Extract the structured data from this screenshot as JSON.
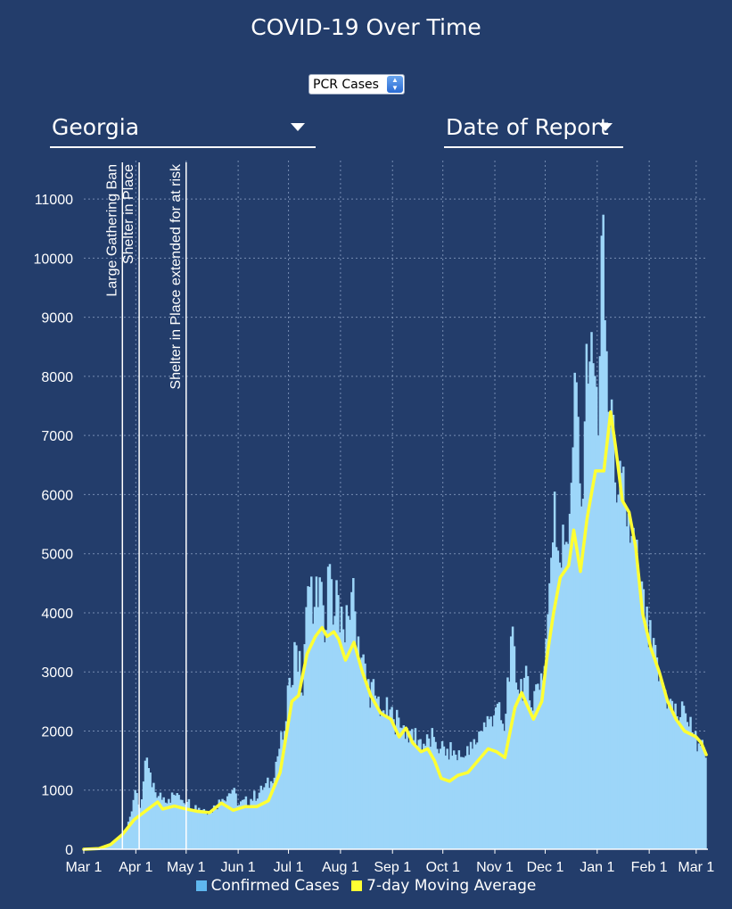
{
  "title": "COVID-19 Over Time",
  "metric_select": {
    "value": "PCR Cases"
  },
  "region_dropdown": {
    "value": "Georgia"
  },
  "date_dropdown": {
    "value": "Date of Report"
  },
  "colors": {
    "background": "#233d6b",
    "bars": "#9dd6f9",
    "bars_legend": "#5fb7ef",
    "moving_average": "#ffff33",
    "grid": "#8aa0c4",
    "event_lines": "#ffffff"
  },
  "legend": {
    "bars_label": "Confirmed Cases",
    "line_label": "7-day Moving Average"
  },
  "chart_data": {
    "type": "bar",
    "xlabel": "",
    "ylabel": "",
    "ylim": [
      0,
      11500
    ],
    "xlim": [
      "2020-03-01",
      "2021-03-08"
    ],
    "y_ticks": [
      0,
      1000,
      2000,
      3000,
      4000,
      5000,
      6000,
      7000,
      8000,
      9000,
      10000,
      11000
    ],
    "x_ticks": [
      {
        "date": "2020-03-01",
        "label": "Mar 1"
      },
      {
        "date": "2020-04-01",
        "label": "Apr 1"
      },
      {
        "date": "2020-05-01",
        "label": "May 1"
      },
      {
        "date": "2020-06-01",
        "label": "Jun 1"
      },
      {
        "date": "2020-07-01",
        "label": "Jul 1"
      },
      {
        "date": "2020-08-01",
        "label": "Aug 1"
      },
      {
        "date": "2020-09-01",
        "label": "Sep 1"
      },
      {
        "date": "2020-10-01",
        "label": "Oct 1"
      },
      {
        "date": "2020-11-01",
        "label": "Nov 1"
      },
      {
        "date": "2020-12-01",
        "label": "Dec 1"
      },
      {
        "date": "2021-01-01",
        "label": "Jan 1"
      },
      {
        "date": "2021-02-01",
        "label": "Feb 1"
      },
      {
        "date": "2021-03-01",
        "label": "Mar 1"
      }
    ],
    "grid": true,
    "legend_position": "bottom-center",
    "annotations": [
      {
        "date": "2020-03-24",
        "label": "Large Gathering Ban"
      },
      {
        "date": "2020-04-03",
        "label": "Shelter in Place"
      },
      {
        "date": "2020-05-01",
        "label": "Shelter in Place extended for at risk"
      }
    ],
    "series": [
      {
        "name": "Confirmed Cases",
        "type": "bar",
        "points": [
          [
            "2020-03-01",
            0
          ],
          [
            "2020-03-10",
            10
          ],
          [
            "2020-03-15",
            60
          ],
          [
            "2020-03-20",
            150
          ],
          [
            "2020-03-25",
            300
          ],
          [
            "2020-03-28",
            550
          ],
          [
            "2020-03-31",
            1000
          ],
          [
            "2020-04-03",
            700
          ],
          [
            "2020-04-07",
            1550
          ],
          [
            "2020-04-10",
            1050
          ],
          [
            "2020-04-14",
            900
          ],
          [
            "2020-04-20",
            850
          ],
          [
            "2020-04-25",
            950
          ],
          [
            "2020-05-01",
            800
          ],
          [
            "2020-05-08",
            700
          ],
          [
            "2020-05-15",
            650
          ],
          [
            "2020-05-22",
            850
          ],
          [
            "2020-05-28",
            1000
          ],
          [
            "2020-06-01",
            750
          ],
          [
            "2020-06-08",
            850
          ],
          [
            "2020-06-15",
            1000
          ],
          [
            "2020-06-20",
            1150
          ],
          [
            "2020-06-25",
            1700
          ],
          [
            "2020-06-28",
            2000
          ],
          [
            "2020-07-01",
            2900
          ],
          [
            "2020-07-05",
            3450
          ],
          [
            "2020-07-09",
            2600
          ],
          [
            "2020-07-12",
            4450
          ],
          [
            "2020-07-16",
            4100
          ],
          [
            "2020-07-19",
            4600
          ],
          [
            "2020-07-22",
            3500
          ],
          [
            "2020-07-24",
            4780
          ],
          [
            "2020-07-27",
            3800
          ],
          [
            "2020-07-30",
            4300
          ],
          [
            "2020-08-03",
            3500
          ],
          [
            "2020-08-07",
            4350
          ],
          [
            "2020-08-11",
            3600
          ],
          [
            "2020-08-16",
            2800
          ],
          [
            "2020-08-21",
            2600
          ],
          [
            "2020-08-26",
            2350
          ],
          [
            "2020-09-01",
            2200
          ],
          [
            "2020-09-06",
            2050
          ],
          [
            "2020-09-11",
            2000
          ],
          [
            "2020-09-16",
            1850
          ],
          [
            "2020-09-20",
            1750
          ],
          [
            "2020-09-25",
            1900
          ],
          [
            "2020-09-29",
            1700
          ],
          [
            "2020-10-03",
            1700
          ],
          [
            "2020-10-08",
            1600
          ],
          [
            "2020-10-13",
            1550
          ],
          [
            "2020-10-18",
            1700
          ],
          [
            "2020-10-23",
            2000
          ],
          [
            "2020-10-28",
            2200
          ],
          [
            "2020-11-01",
            2400
          ],
          [
            "2020-11-06",
            2000
          ],
          [
            "2020-11-10",
            3600
          ],
          [
            "2020-11-14",
            2700
          ],
          [
            "2020-11-18",
            2900
          ],
          [
            "2020-11-22",
            2400
          ],
          [
            "2020-11-26",
            2800
          ],
          [
            "2020-11-30",
            3100
          ],
          [
            "2020-12-03",
            4500
          ],
          [
            "2020-12-06",
            6050
          ],
          [
            "2020-12-09",
            4850
          ],
          [
            "2020-12-13",
            5200
          ],
          [
            "2020-12-16",
            6200
          ],
          [
            "2020-12-19",
            7900
          ],
          [
            "2020-12-22",
            5800
          ],
          [
            "2020-12-25",
            8550
          ],
          [
            "2020-12-28",
            8750
          ],
          [
            "2021-01-01",
            7000
          ],
          [
            "2021-01-03",
            10380
          ],
          [
            "2021-01-05",
            8950
          ],
          [
            "2021-01-07",
            7400
          ],
          [
            "2021-01-10",
            7350
          ],
          [
            "2021-01-13",
            6000
          ],
          [
            "2021-01-17",
            5800
          ],
          [
            "2021-01-21",
            5300
          ],
          [
            "2021-01-25",
            4700
          ],
          [
            "2021-01-29",
            3800
          ],
          [
            "2021-02-02",
            3350
          ],
          [
            "2021-02-07",
            2900
          ],
          [
            "2021-02-12",
            2500
          ],
          [
            "2021-02-17",
            2250
          ],
          [
            "2021-02-22",
            2300
          ],
          [
            "2021-02-27",
            1900
          ],
          [
            "2021-03-03",
            1750
          ],
          [
            "2021-03-06",
            1550
          ]
        ]
      },
      {
        "name": "7-day Moving Average",
        "type": "line",
        "points": [
          [
            "2020-03-01",
            0
          ],
          [
            "2020-03-10",
            10
          ],
          [
            "2020-03-17",
            80
          ],
          [
            "2020-03-24",
            250
          ],
          [
            "2020-03-31",
            500
          ],
          [
            "2020-04-07",
            650
          ],
          [
            "2020-04-14",
            800
          ],
          [
            "2020-04-17",
            680
          ],
          [
            "2020-04-24",
            730
          ],
          [
            "2020-05-01",
            680
          ],
          [
            "2020-05-08",
            640
          ],
          [
            "2020-05-15",
            620
          ],
          [
            "2020-05-22",
            780
          ],
          [
            "2020-05-29",
            660
          ],
          [
            "2020-06-05",
            720
          ],
          [
            "2020-06-12",
            720
          ],
          [
            "2020-06-19",
            820
          ],
          [
            "2020-06-26",
            1300
          ],
          [
            "2020-07-03",
            2500
          ],
          [
            "2020-07-07",
            2600
          ],
          [
            "2020-07-12",
            3300
          ],
          [
            "2020-07-17",
            3600
          ],
          [
            "2020-07-21",
            3750
          ],
          [
            "2020-07-24",
            3600
          ],
          [
            "2020-07-28",
            3680
          ],
          [
            "2020-07-31",
            3550
          ],
          [
            "2020-08-04",
            3200
          ],
          [
            "2020-08-09",
            3500
          ],
          [
            "2020-08-14",
            3000
          ],
          [
            "2020-08-19",
            2600
          ],
          [
            "2020-08-25",
            2300
          ],
          [
            "2020-08-31",
            2200
          ],
          [
            "2020-09-05",
            1900
          ],
          [
            "2020-09-09",
            2050
          ],
          [
            "2020-09-13",
            1800
          ],
          [
            "2020-09-18",
            1650
          ],
          [
            "2020-09-22",
            1700
          ],
          [
            "2020-09-26",
            1500
          ],
          [
            "2020-09-30",
            1200
          ],
          [
            "2020-10-05",
            1150
          ],
          [
            "2020-10-10",
            1250
          ],
          [
            "2020-10-16",
            1300
          ],
          [
            "2020-10-22",
            1500
          ],
          [
            "2020-10-28",
            1700
          ],
          [
            "2020-11-02",
            1650
          ],
          [
            "2020-11-07",
            1550
          ],
          [
            "2020-11-13",
            2400
          ],
          [
            "2020-11-17",
            2650
          ],
          [
            "2020-11-20",
            2450
          ],
          [
            "2020-11-24",
            2200
          ],
          [
            "2020-11-29",
            2500
          ],
          [
            "2020-12-02",
            3250
          ],
          [
            "2020-12-06",
            4000
          ],
          [
            "2020-12-10",
            4600
          ],
          [
            "2020-12-15",
            4800
          ],
          [
            "2020-12-18",
            5400
          ],
          [
            "2020-12-22",
            4700
          ],
          [
            "2020-12-26",
            5600
          ],
          [
            "2020-12-31",
            6400
          ],
          [
            "2021-01-05",
            6400
          ],
          [
            "2021-01-09",
            7400
          ],
          [
            "2021-01-12",
            6800
          ],
          [
            "2021-01-16",
            5900
          ],
          [
            "2021-01-20",
            5700
          ],
          [
            "2021-01-24",
            5100
          ],
          [
            "2021-01-28",
            4000
          ],
          [
            "2021-02-02",
            3400
          ],
          [
            "2021-02-07",
            3000
          ],
          [
            "2021-02-12",
            2500
          ],
          [
            "2021-02-17",
            2200
          ],
          [
            "2021-02-22",
            2000
          ],
          [
            "2021-03-01",
            1900
          ],
          [
            "2021-03-04",
            1800
          ],
          [
            "2021-03-07",
            1600
          ]
        ]
      }
    ]
  }
}
